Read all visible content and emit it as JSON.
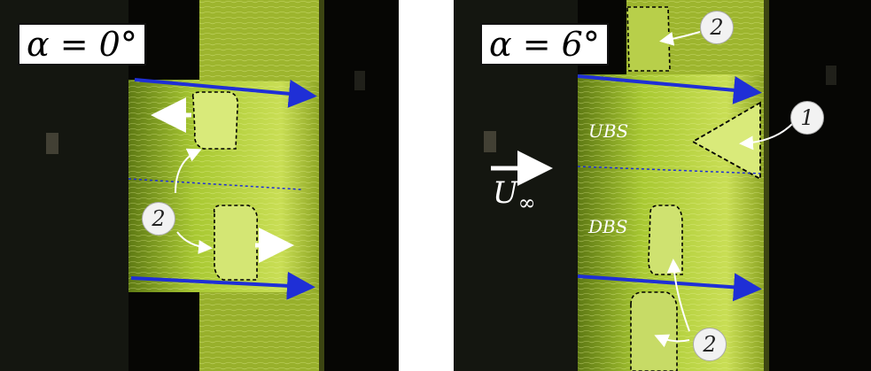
{
  "panels": [
    {
      "title": "α = 0°",
      "badges": [
        "2"
      ]
    },
    {
      "title": "α = 6°",
      "region_labels": {
        "upper": "UBS",
        "lower": "DBS"
      },
      "freestream_label": {
        "symbol": "U",
        "subscript": "∞"
      },
      "badges": [
        "2",
        "1",
        "2"
      ]
    }
  ],
  "colors": {
    "flow_arrow": "#1f2fd6",
    "surface_glow": "#a9c933",
    "background": "#060604"
  },
  "icons": [
    "flow-direction-arrow",
    "cell-motion-arrow",
    "freestream-arrow",
    "pointer-arrow"
  ]
}
